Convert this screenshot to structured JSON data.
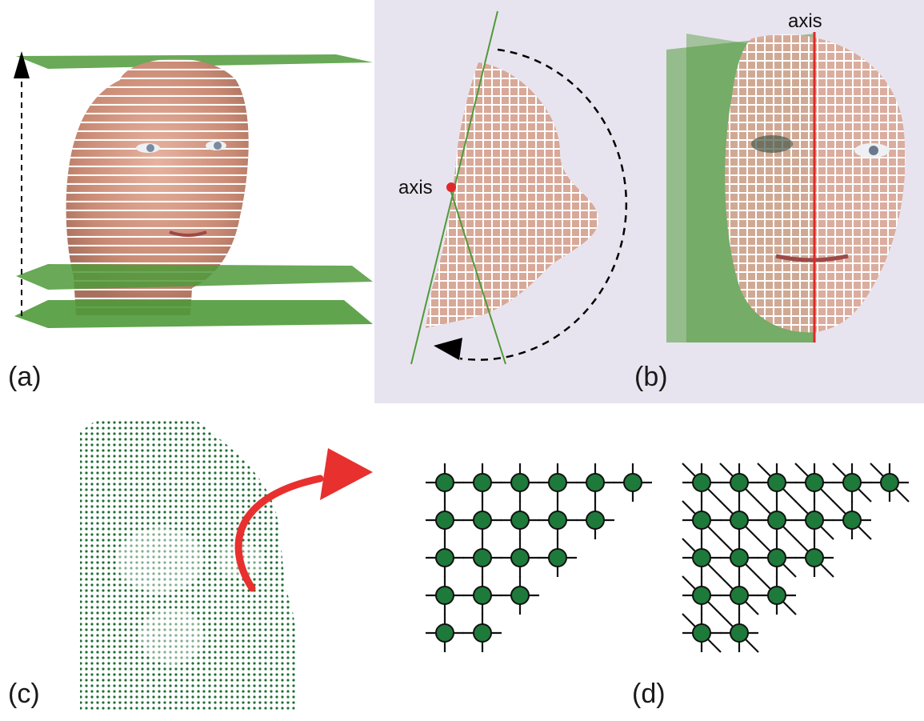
{
  "panels": {
    "a": {
      "label": "(a)"
    },
    "b": {
      "label": "(b)",
      "axis_left": "axis",
      "axis_right": "axis"
    },
    "c": {
      "label": "(c)"
    },
    "d": {
      "label": "(d)"
    }
  },
  "colors": {
    "plane_green": "#4f9a3a",
    "node_green": "#1e7a3a",
    "axis_red": "#e0282a",
    "arrow_red": "#e8302e",
    "skin": "#d79a86",
    "panel_b_bg": "#e8e4ef"
  },
  "icons": [
    "up-arrow-icon",
    "rotation-arrow-icon",
    "curved-red-arrow-icon"
  ]
}
